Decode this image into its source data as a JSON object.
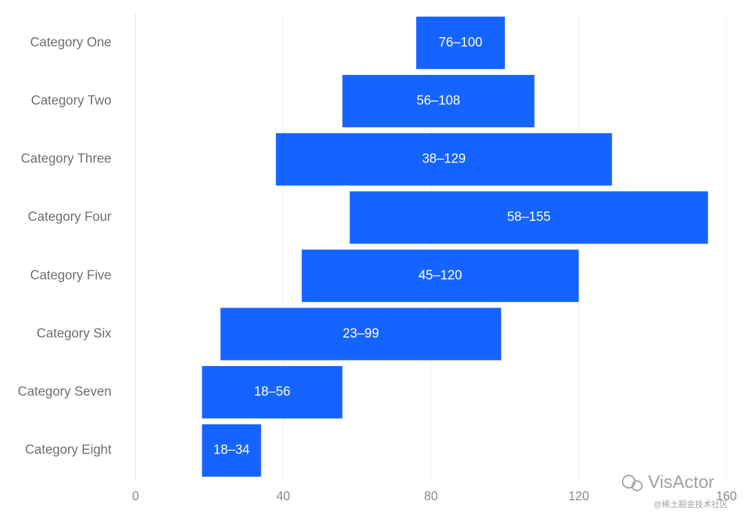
{
  "chart_data": {
    "type": "range-bar",
    "categories": [
      "Category One",
      "Category Two",
      "Category Three",
      "Category Four",
      "Category Five",
      "Category Six",
      "Category Seven",
      "Category Eight"
    ],
    "starts": [
      76,
      56,
      38,
      58,
      45,
      23,
      18,
      18
    ],
    "ends": [
      100,
      108,
      129,
      155,
      120,
      99,
      56,
      34
    ],
    "value_labels": [
      "76–100",
      "56–108",
      "38–129",
      "58–155",
      "45–120",
      "23–99",
      "18–56",
      "18–34"
    ],
    "color": "#1664ff",
    "xlim": [
      0,
      160
    ],
    "xticks": [
      0,
      40,
      80,
      120,
      160
    ],
    "grid": true
  },
  "watermark": {
    "brand": "VisActor",
    "source": "@稀土掘金技术社区"
  }
}
